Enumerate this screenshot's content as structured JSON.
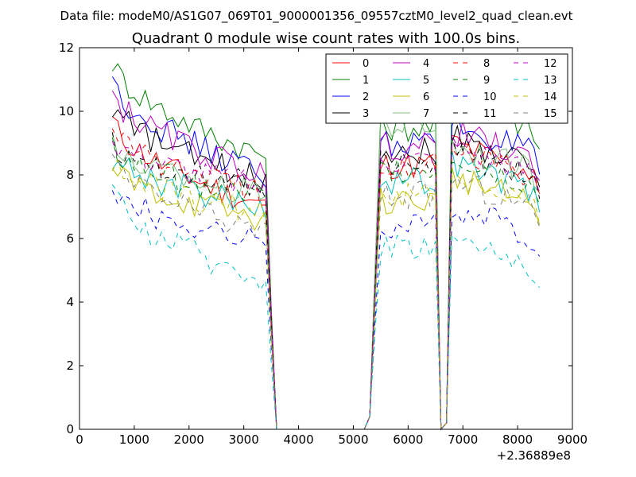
{
  "header": {
    "data_file": "Data file: modeM0/AS1G07_069T01_9000001356_09557cztM0_level2_quad_clean.evt"
  },
  "chart_data": {
    "type": "line",
    "title": "Quadrant 0 module wise count rates with 100.0s bins.",
    "xlabel": "",
    "ylabel": "",
    "x_offset_label": "+2.36889e8",
    "xlim": [
      0,
      9000
    ],
    "ylim": [
      0,
      12
    ],
    "x_ticks": [
      0,
      1000,
      2000,
      3000,
      4000,
      5000,
      6000,
      7000,
      8000,
      9000
    ],
    "y_ticks": [
      0,
      2,
      4,
      6,
      8,
      10,
      12
    ],
    "x_tick_labels": [
      "0",
      "1000",
      "2000",
      "3000",
      "4000",
      "5000",
      "6000",
      "7000",
      "8000",
      "9000"
    ],
    "y_tick_labels": [
      "0",
      "2",
      "4",
      "6",
      "8",
      "10",
      "12"
    ],
    "legend": {
      "position": "top-right",
      "columns": 4
    },
    "segments": [
      {
        "x_start": 600,
        "x_end": 3400,
        "step": 100
      },
      {
        "x_start": 5500,
        "x_end": 6500,
        "step": 100
      },
      {
        "x_start": 6800,
        "x_end": 8400,
        "step": 100
      }
    ],
    "series": [
      {
        "name": "0",
        "color": "#ff0000",
        "dash": "solid",
        "start": 9.7,
        "end": 7.0,
        "seg2": 8.3,
        "seg3": 8.0
      },
      {
        "name": "1",
        "color": "#008000",
        "dash": "solid",
        "start": 11.6,
        "end": 8.6,
        "seg2": 9.5,
        "seg3": 9.4
      },
      {
        "name": "2",
        "color": "#0000ff",
        "dash": "solid",
        "start": 11.0,
        "end": 8.0,
        "seg2": 9.0,
        "seg3": 8.6
      },
      {
        "name": "3",
        "color": "#000000",
        "dash": "solid",
        "start": 10.2,
        "end": 7.8,
        "seg2": 8.8,
        "seg3": 8.2
      },
      {
        "name": "4",
        "color": "#bf00bf",
        "dash": "solid",
        "start": 10.6,
        "end": 8.0,
        "seg2": 8.9,
        "seg3": 8.4
      },
      {
        "name": "5",
        "color": "#00bfbf",
        "dash": "solid",
        "start": 8.6,
        "end": 7.0,
        "seg2": 7.8,
        "seg3": 7.4
      },
      {
        "name": "6",
        "color": "#bfbf00",
        "dash": "solid",
        "start": 8.2,
        "end": 6.6,
        "seg2": 7.2,
        "seg3": 7.0
      },
      {
        "name": "7",
        "color": "#7fbf7f",
        "dash": "solid",
        "start": 8.9,
        "end": 7.4,
        "seg2": 9.6,
        "seg3": 8.0
      },
      {
        "name": "8",
        "color": "#ff0000",
        "dash": "dashed",
        "start": 9.5,
        "end": 7.4,
        "seg2": 8.4,
        "seg3": 7.9
      },
      {
        "name": "9",
        "color": "#008000",
        "dash": "dashed",
        "start": 8.8,
        "end": 7.2,
        "seg2": 8.2,
        "seg3": 7.6
      },
      {
        "name": "10",
        "color": "#0000ff",
        "dash": "dashed",
        "start": 7.6,
        "end": 5.8,
        "seg2": 6.4,
        "seg3": 6.0
      },
      {
        "name": "11",
        "color": "#000000",
        "dash": "dashed",
        "start": 9.0,
        "end": 7.6,
        "seg2": 8.4,
        "seg3": 7.8
      },
      {
        "name": "12",
        "color": "#bf00bf",
        "dash": "dashed",
        "start": 9.2,
        "end": 7.6,
        "seg2": 8.5,
        "seg3": 8.0
      },
      {
        "name": "13",
        "color": "#00bfbf",
        "dash": "dashed",
        "start": 7.4,
        "end": 4.7,
        "seg2": 5.8,
        "seg3": 5.0
      },
      {
        "name": "14",
        "color": "#bfbf00",
        "dash": "dashed",
        "start": 8.3,
        "end": 6.8,
        "seg2": 7.4,
        "seg3": 7.0
      },
      {
        "name": "15",
        "color": "#7f7f7f",
        "dash": "dashed",
        "start": 8.4,
        "end": 6.2,
        "seg2": 7.4,
        "seg3": 6.9
      }
    ]
  }
}
